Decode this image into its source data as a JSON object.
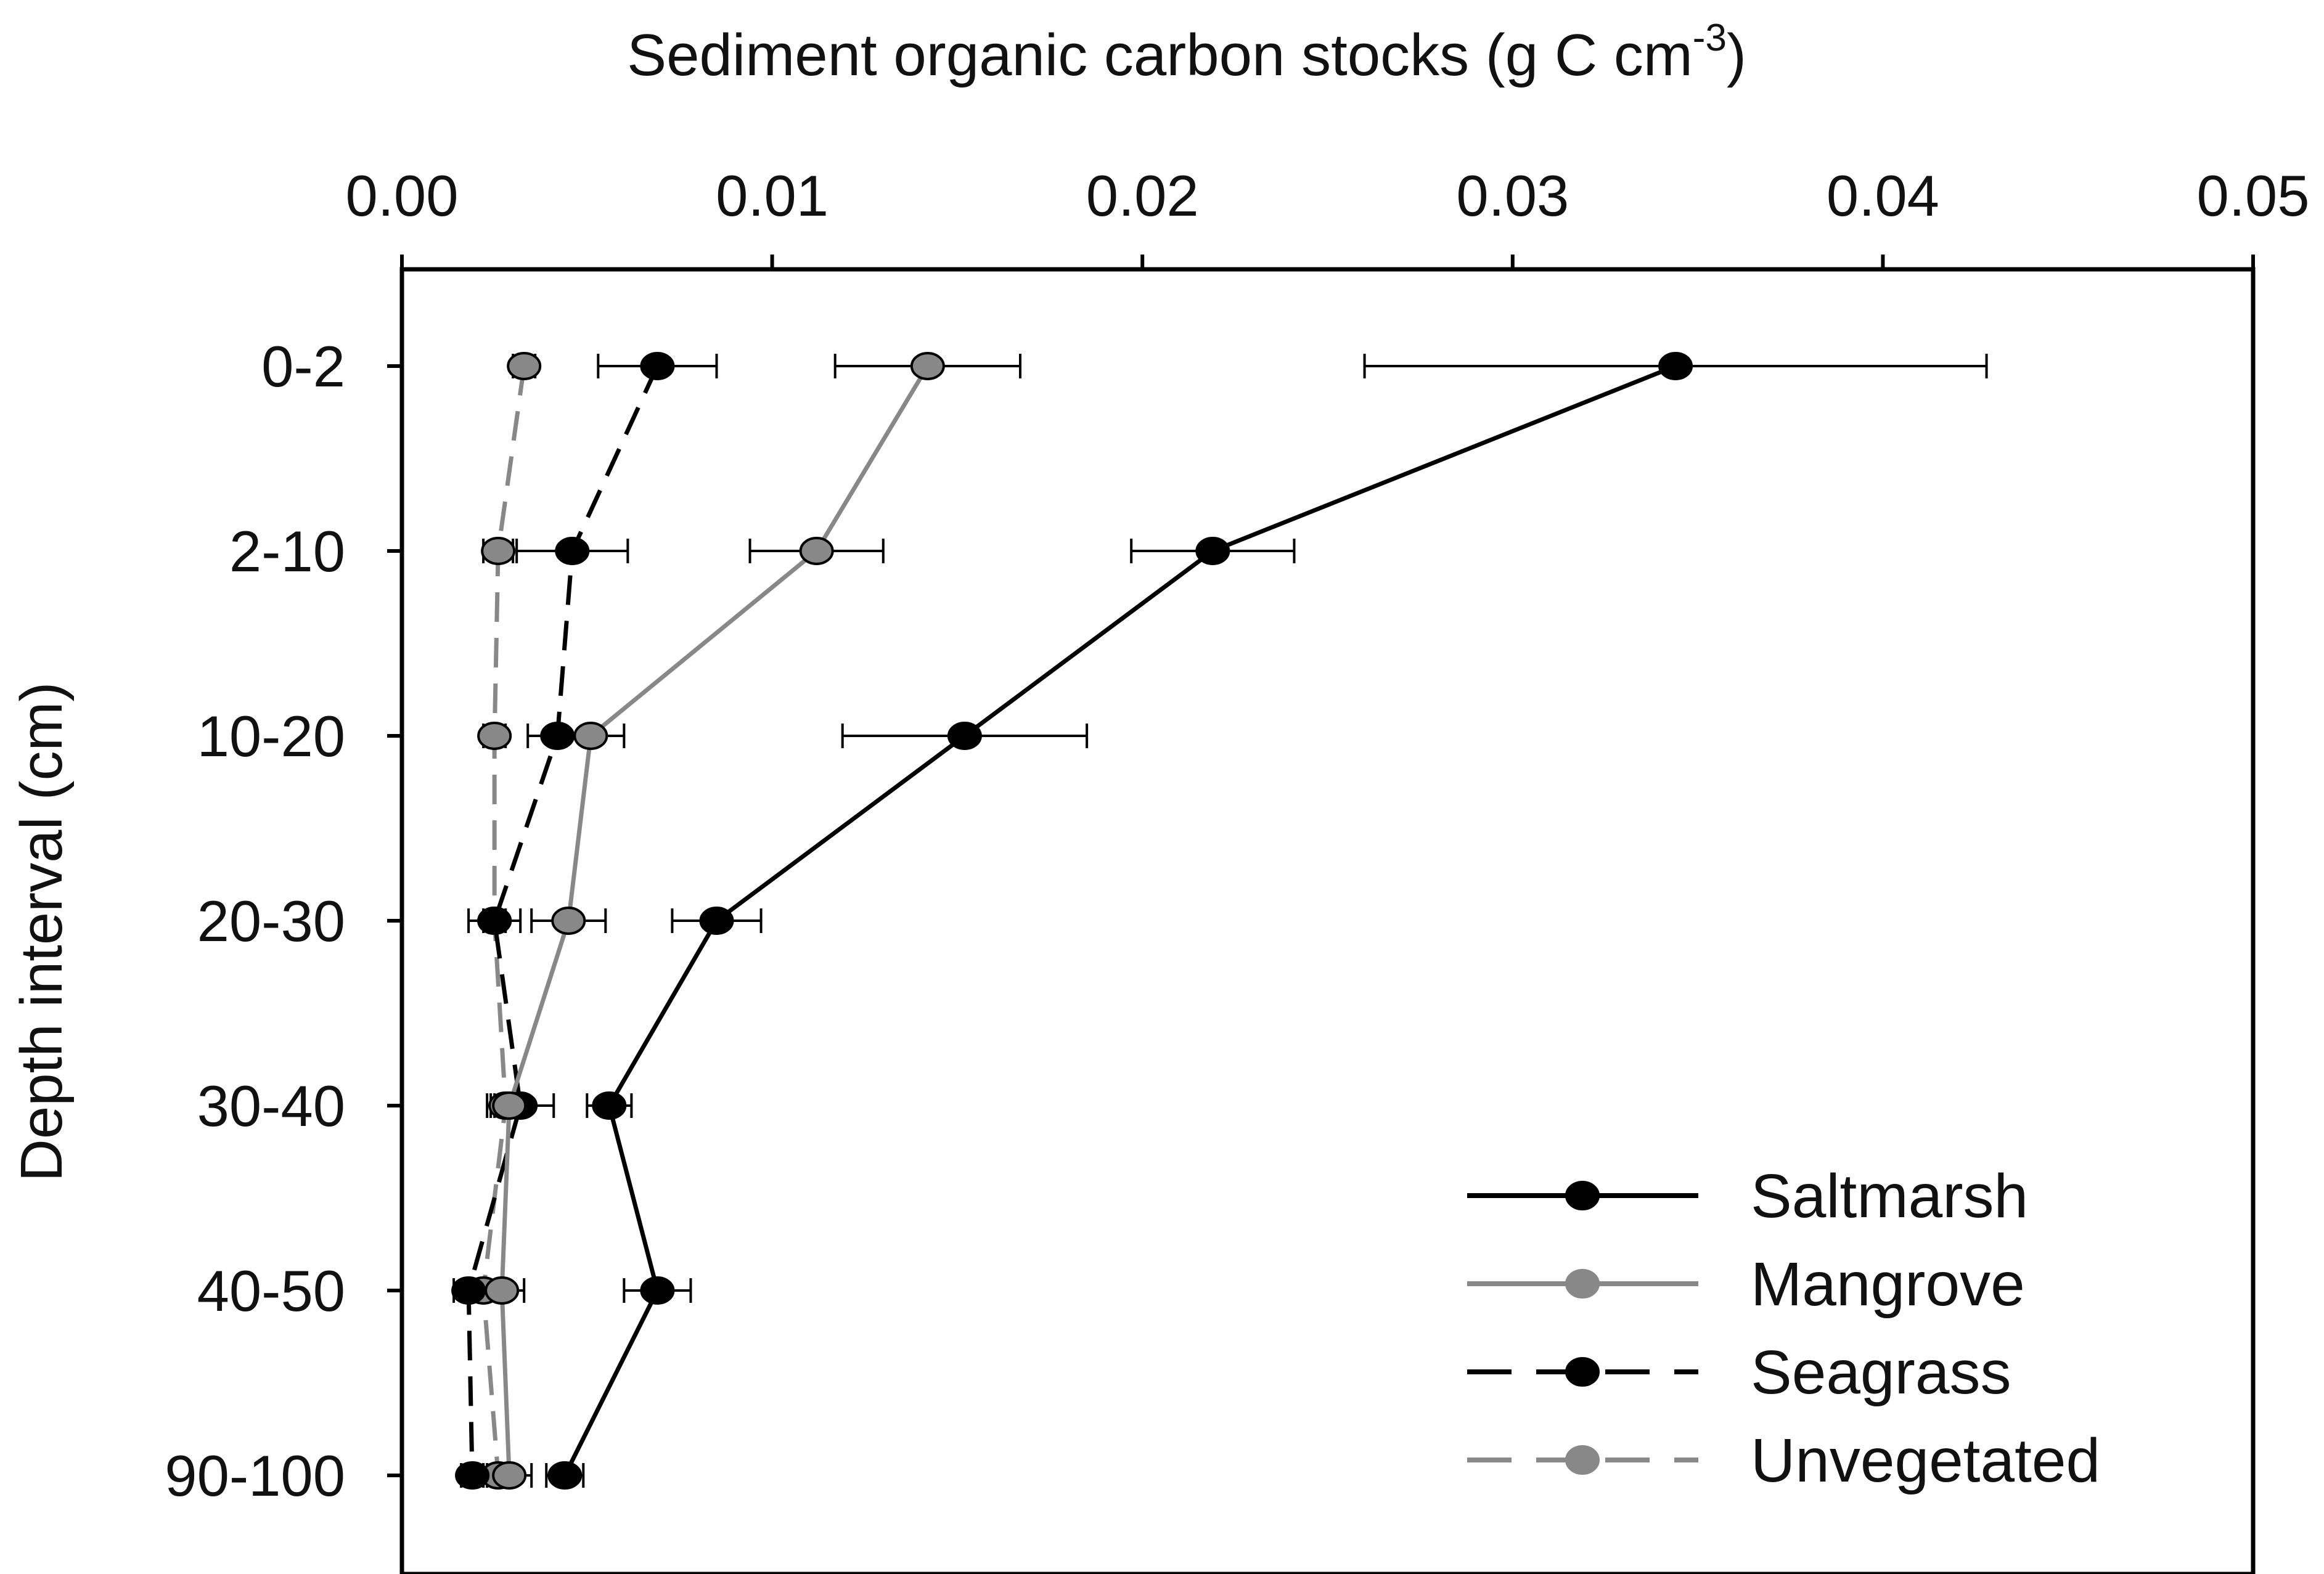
{
  "chart_data": {
    "type": "line",
    "xlabel_main": "Sediment organic carbon stocks (g C cm",
    "xlabel_sup": "-3",
    "xlabel_end": ")",
    "ylabel": "Depth interval (cm)",
    "xlim": [
      0,
      0.05
    ],
    "x_axis_position": "top",
    "grid": false,
    "legend_position": "bottom-right",
    "x_ticks": [
      "0.00",
      "0.01",
      "0.02",
      "0.03",
      "0.04",
      "0.05"
    ],
    "x_tick_values": [
      0,
      0.01,
      0.02,
      0.03,
      0.04,
      0.05
    ],
    "categories": [
      "0-2",
      "2-10",
      "10-20",
      "20-30",
      "30-40",
      "40-50",
      "90-100"
    ],
    "series": [
      {
        "name": "Saltmarsh",
        "color": "#000000",
        "dashed": false,
        "values": [
          0.0344,
          0.0219,
          0.0152,
          0.0085,
          0.0056,
          0.0069,
          0.0044
        ],
        "errors": [
          0.0084,
          0.0022,
          0.0033,
          0.0012,
          0.0006,
          0.0009,
          0.0005
        ]
      },
      {
        "name": "Mangrove",
        "color": "#888888",
        "dashed": false,
        "values": [
          0.0142,
          0.0112,
          0.0051,
          0.0045,
          0.0029,
          0.0027,
          0.0029
        ],
        "errors": [
          0.0025,
          0.0018,
          0.0009,
          0.001,
          0.0004,
          0.0006,
          0.0006
        ]
      },
      {
        "name": "Seagrass",
        "color": "#000000",
        "dashed": true,
        "values": [
          0.0069,
          0.0046,
          0.0042,
          0.0025,
          0.0032,
          0.0018,
          0.0019
        ],
        "errors": [
          0.0016,
          0.0015,
          0.0008,
          0.0007,
          0.0009,
          0.0004,
          0.0003
        ]
      },
      {
        "name": "Unvegetated",
        "color": "#888888",
        "dashed": true,
        "values": [
          0.0033,
          0.0026,
          0.0025,
          0.0025,
          0.0028,
          0.0022,
          0.0026
        ],
        "errors": [
          0.0003,
          0.0004,
          0.0003,
          0.0003,
          0.0004,
          0.0003,
          0.0004
        ]
      }
    ]
  }
}
